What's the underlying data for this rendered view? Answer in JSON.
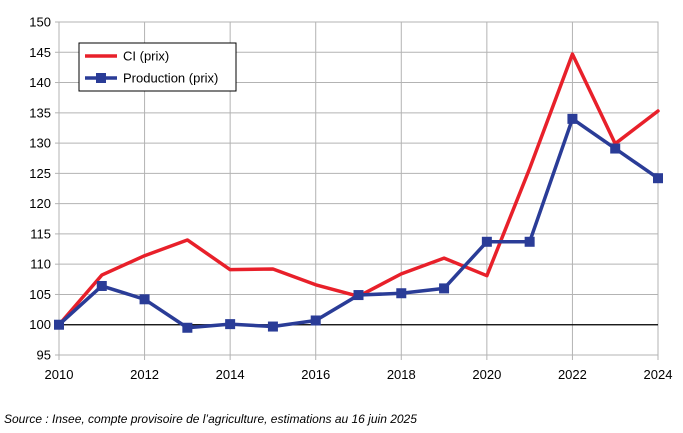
{
  "chart_data": {
    "type": "line",
    "x": [
      2010,
      2011,
      2012,
      2013,
      2014,
      2015,
      2016,
      2017,
      2018,
      2019,
      2020,
      2021,
      2022,
      2023,
      2024
    ],
    "series": [
      {
        "name": "CI (prix)",
        "color": "#e8202a",
        "marker": "none",
        "values": [
          100,
          108.2,
          111.4,
          114.0,
          109.1,
          109.2,
          106.6,
          104.7,
          108.4,
          111.0,
          108.1,
          125.8,
          144.7,
          129.9,
          135.3
        ]
      },
      {
        "name": "Production (prix)",
        "color": "#2a3c97",
        "marker": "square",
        "values": [
          100,
          106.4,
          104.2,
          99.5,
          100.1,
          99.7,
          100.7,
          104.9,
          105.2,
          106.0,
          113.7,
          113.7,
          134.0,
          129.1,
          124.2
        ]
      }
    ],
    "xticks": [
      "2010",
      "2012",
      "2014",
      "2016",
      "2018",
      "2020",
      "2022",
      "2024"
    ],
    "yticks": [
      "95",
      "100",
      "105",
      "110",
      "115",
      "120",
      "125",
      "130",
      "135",
      "140",
      "145",
      "150"
    ],
    "xlim": [
      2010,
      2024
    ],
    "ylim": [
      95,
      150
    ],
    "reference_line": 100,
    "grid": "vertical and horizontal",
    "legend_position": "top-left",
    "title": "",
    "xlabel": "",
    "ylabel": ""
  },
  "source_note": "Source : Insee, compte provisoire de l’agriculture, estimations au 16 juin 2025"
}
